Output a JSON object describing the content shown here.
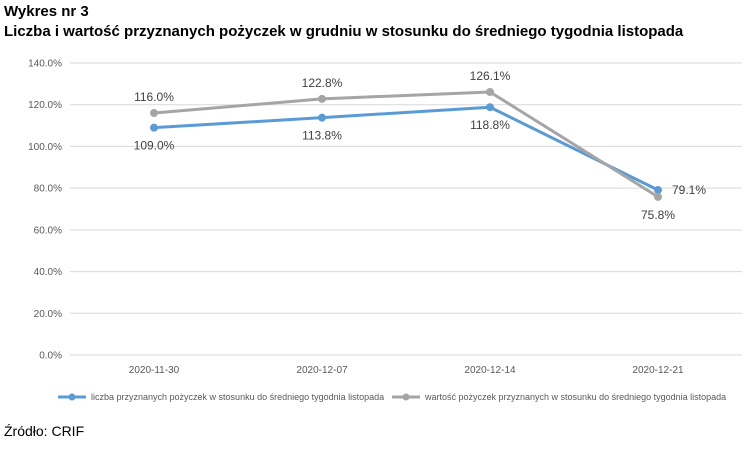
{
  "heading": {
    "line1": "Wykres nr 3",
    "line2": "Liczba i wartość przyznanych pożyczek w grudniu w stosunku do średniego tygodnia listopada"
  },
  "source": "Źródło: CRIF",
  "colors": {
    "series1": "#5b9bd5",
    "series2": "#a5a5a5",
    "grid": "#d9d9d9",
    "text": "#595959"
  },
  "chart_data": {
    "type": "line",
    "title": "Liczba i wartość przyznanych pożyczek w grudniu w stosunku do średniego tygodnia listopada",
    "xlabel": "",
    "ylabel": "",
    "categories": [
      "2020-11-30",
      "2020-12-07",
      "2020-12-14",
      "2020-12-21"
    ],
    "ylim": [
      0,
      140
    ],
    "yticks": [
      0,
      20,
      40,
      60,
      80,
      100,
      120,
      140
    ],
    "ytick_labels": [
      "0.0%",
      "20.0%",
      "40.0%",
      "60.0%",
      "80.0%",
      "100.0%",
      "120.0%",
      "140.0%"
    ],
    "grid": true,
    "legend_position": "bottom",
    "series": [
      {
        "name": "liczba przyznanych pożyczek w stosunku do średniego tygodnia listopada",
        "color": "#5b9bd5",
        "values": [
          109.0,
          113.8,
          118.8,
          79.1
        ],
        "labels": [
          "109.0%",
          "113.8%",
          "118.8%",
          "79.1%"
        ],
        "label_positions": [
          "below",
          "below",
          "below",
          "right"
        ]
      },
      {
        "name": "wartość pożyczek przyznanych w stosunku do średniego tygodnia listopada",
        "color": "#a5a5a5",
        "values": [
          116.0,
          122.8,
          126.1,
          75.8
        ],
        "labels": [
          "116.0%",
          "122.8%",
          "126.1%",
          "75.8%"
        ],
        "label_positions": [
          "above",
          "above",
          "above",
          "below"
        ]
      }
    ]
  }
}
